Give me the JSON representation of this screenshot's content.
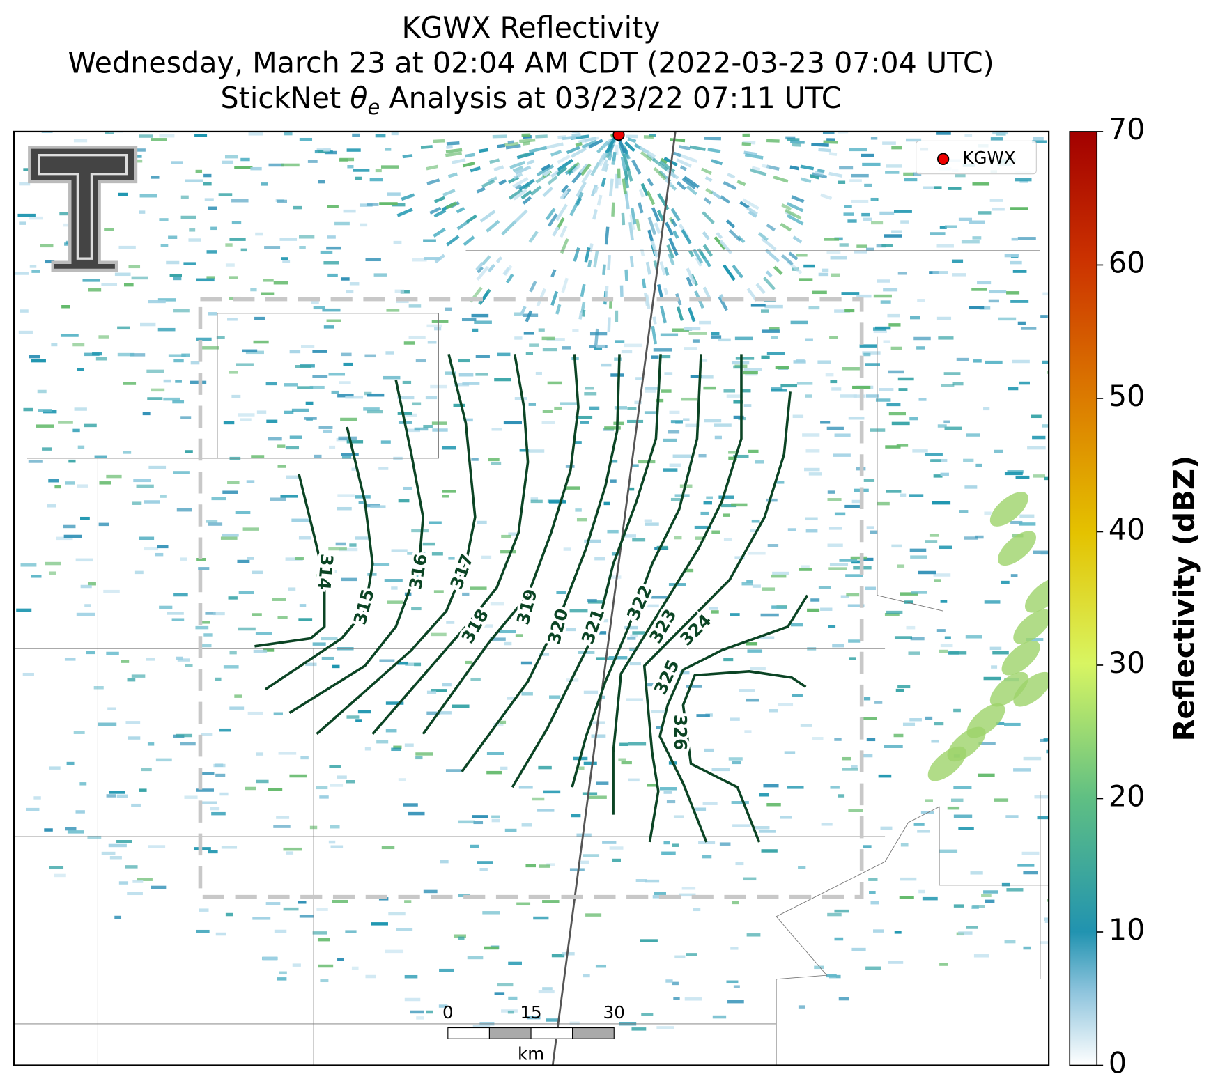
{
  "header": {
    "title_line1": "KGWX Reflectivity",
    "title_line2": "Wednesday, March 23 at 02:04 AM CDT (2022-03-23 07:04 UTC)",
    "title_line3": {
      "prefix": "StickNet",
      "symbol": "θ",
      "subscript": "e",
      "suffix": "Analysis at 03/23/22 07:11 UTC"
    }
  },
  "map": {
    "legend": {
      "label": "KGWX"
    },
    "contour_labels": [
      314,
      315,
      316,
      317,
      318,
      319,
      320,
      321,
      322,
      323,
      324,
      325,
      326
    ],
    "scale_bar": {
      "ticks": [
        0,
        15,
        30
      ],
      "unit": "km"
    }
  },
  "colorbar": {
    "label": "Reflectivity (dBZ)",
    "range": [
      0,
      70
    ],
    "ticks": [
      0,
      10,
      20,
      30,
      40,
      50,
      60,
      70
    ]
  }
}
